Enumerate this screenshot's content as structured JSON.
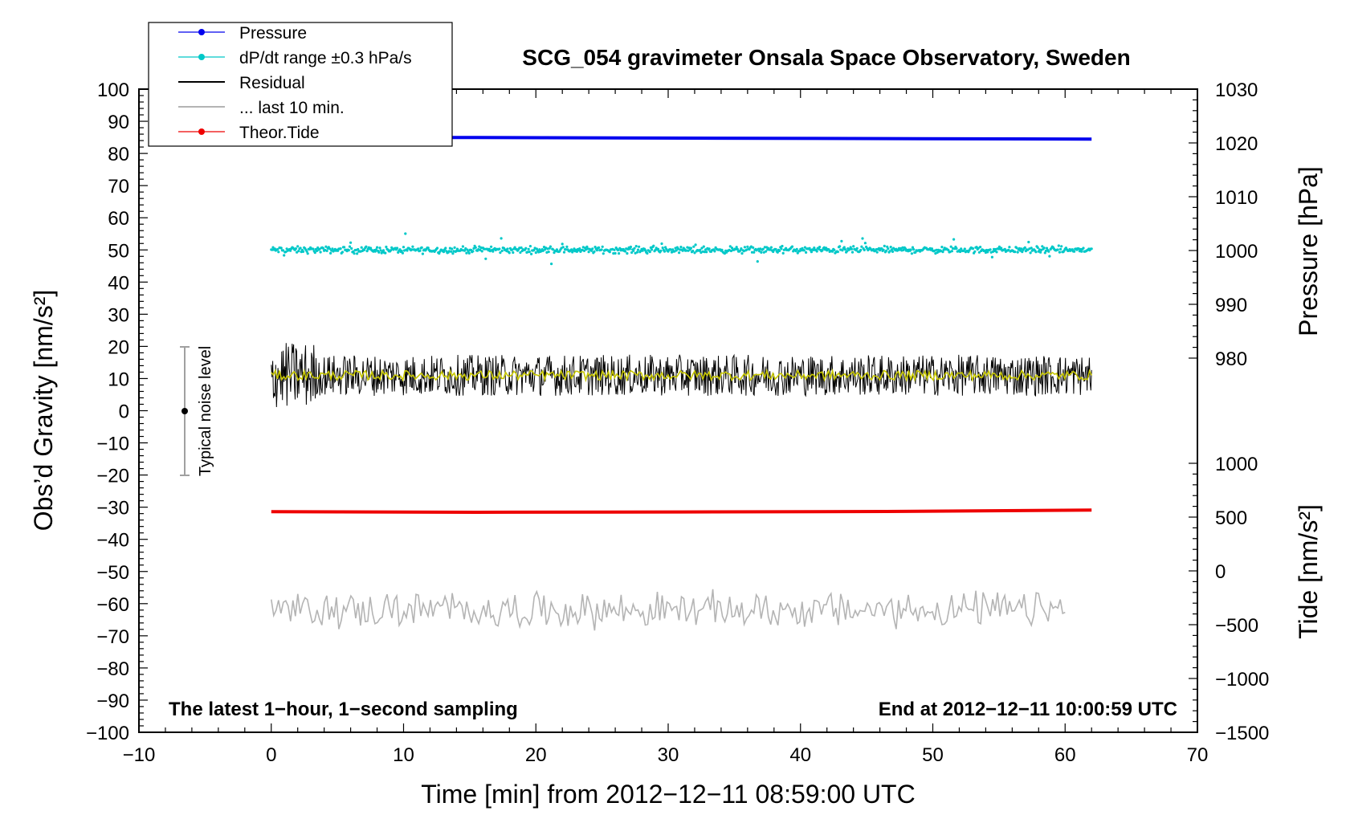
{
  "chart_data": {
    "type": "line",
    "title": "SCG_054 gravimeter Onsala Space Observatory, Sweden",
    "xlabel": "Time [min] from 2012−12−11 08:59:00 UTC",
    "ylabel_left": "Obs’d Gravity [nm/s²]",
    "ylabel_right_top": "Pressure [hPa]",
    "ylabel_right_bottom": "Tide [nm/s²]",
    "xlim": [
      -10,
      70
    ],
    "ylim": [
      -100,
      100
    ],
    "x_ticks": [
      "−10",
      "0",
      "10",
      "20",
      "30",
      "40",
      "50",
      "60",
      "70"
    ],
    "y_ticks": [
      "100",
      "90",
      "80",
      "70",
      "60",
      "50",
      "40",
      "30",
      "20",
      "10",
      "0",
      "−10",
      "−20",
      "−30",
      "−40",
      "−50",
      "−60",
      "−70",
      "−80",
      "−90",
      "−100"
    ],
    "pressure_axis": {
      "ticks": [
        "1030",
        "1020",
        "1010",
        "1000",
        "990",
        "980"
      ],
      "range": [
        980,
        1030
      ]
    },
    "tide_axis": {
      "ticks": [
        "1000",
        "500",
        "0",
        "−500",
        "−1000",
        "−1500"
      ],
      "range": [
        -1500,
        1000
      ]
    },
    "annotation_left": "The latest 1−hour, 1−second sampling",
    "annotation_right": "End at 2012−12−11 10:00:59 UTC",
    "noise_label": "Typical noise level",
    "noise_level": {
      "x": -7,
      "center": 0,
      "range": [
        -20,
        20
      ]
    },
    "legend": [
      {
        "label": "Pressure",
        "color": "#0000ee",
        "marker": true
      },
      {
        "label": "dP/dt range ±0.3 hPa/s",
        "color": "#00c8c8",
        "marker": true
      },
      {
        "label": "Residual",
        "color": "#000000",
        "marker": false
      },
      {
        "label": "... last 10 min.",
        "color": "#b4b4b4",
        "marker": false
      },
      {
        "label": "Theor.Tide",
        "color": "#ee0000",
        "marker": true
      }
    ],
    "series": [
      {
        "name": "Pressure",
        "color": "#0000ee",
        "axis": "pressure",
        "x_range": [
          0,
          62
        ],
        "values_hpa": [
          1021.0,
          1021.0,
          1020.9,
          1020.8,
          1020.7
        ]
      },
      {
        "name": "dP/dt",
        "color": "#00c8c8",
        "axis": "left",
        "x_range": [
          0,
          62
        ],
        "center": 50,
        "spread": 4
      },
      {
        "name": "Residual",
        "color": "#000000",
        "axis": "left",
        "x_range": [
          0,
          62
        ],
        "center": 11,
        "spread": 8
      },
      {
        "name": "Residual smoothed",
        "color": "#c8c800",
        "axis": "left",
        "x_range": [
          0,
          62
        ],
        "center": 11,
        "spread": 1.5
      },
      {
        "name": "... last 10 min.",
        "color": "#b4b4b4",
        "axis": "left",
        "x_range": [
          0,
          60
        ],
        "center": -62,
        "spread": 6
      },
      {
        "name": "Theor.Tide",
        "color": "#ee0000",
        "axis": "tide",
        "x_range": [
          0,
          62
        ],
        "values": [
          550,
          545,
          548,
          552,
          565
        ]
      }
    ]
  }
}
